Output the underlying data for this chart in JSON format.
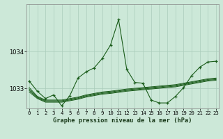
{
  "title": "Graphe pression niveau de la mer (hPa)",
  "bg_color": "#cce8d8",
  "grid_color": "#aaccbb",
  "line_color": "#1a5c1a",
  "x_labels": [
    "0",
    "1",
    "2",
    "3",
    "4",
    "5",
    "6",
    "7",
    "8",
    "9",
    "10",
    "11",
    "12",
    "13",
    "14",
    "15",
    "16",
    "17",
    "18",
    "19",
    "20",
    "21",
    "22",
    "23"
  ],
  "yticks": [
    1033,
    1034
  ],
  "ylim": [
    1032.45,
    1035.3
  ],
  "xlim": [
    -0.3,
    23.3
  ],
  "main_y": [
    1033.2,
    1032.92,
    1032.72,
    1032.82,
    1032.52,
    1032.8,
    1033.28,
    1033.45,
    1033.56,
    1033.82,
    1034.18,
    1034.88,
    1033.52,
    1033.16,
    1033.14,
    1032.68,
    1032.6,
    1032.6,
    1032.78,
    1033.02,
    1033.35,
    1033.58,
    1033.72,
    1033.74
  ],
  "band_lines": [
    [
      1033.02,
      1032.78,
      1032.68,
      1032.68,
      1032.68,
      1032.72,
      1032.76,
      1032.82,
      1032.86,
      1032.9,
      1032.92,
      1032.95,
      1032.98,
      1033.0,
      1033.02,
      1033.04,
      1033.06,
      1033.08,
      1033.1,
      1033.14,
      1033.18,
      1033.22,
      1033.26,
      1033.28
    ],
    [
      1032.98,
      1032.76,
      1032.66,
      1032.66,
      1032.66,
      1032.7,
      1032.74,
      1032.8,
      1032.84,
      1032.88,
      1032.9,
      1032.93,
      1032.96,
      1032.98,
      1033.0,
      1033.02,
      1033.04,
      1033.06,
      1033.08,
      1033.12,
      1033.16,
      1033.2,
      1033.24,
      1033.26
    ],
    [
      1032.94,
      1032.74,
      1032.64,
      1032.64,
      1032.64,
      1032.68,
      1032.72,
      1032.78,
      1032.82,
      1032.86,
      1032.88,
      1032.91,
      1032.94,
      1032.96,
      1032.98,
      1033.0,
      1033.02,
      1033.04,
      1033.06,
      1033.1,
      1033.14,
      1033.18,
      1033.22,
      1033.24
    ],
    [
      1032.9,
      1032.72,
      1032.62,
      1032.62,
      1032.62,
      1032.66,
      1032.7,
      1032.76,
      1032.8,
      1032.84,
      1032.86,
      1032.89,
      1032.92,
      1032.94,
      1032.96,
      1032.98,
      1033.0,
      1033.02,
      1033.04,
      1033.08,
      1033.12,
      1033.16,
      1033.2,
      1033.22
    ]
  ]
}
